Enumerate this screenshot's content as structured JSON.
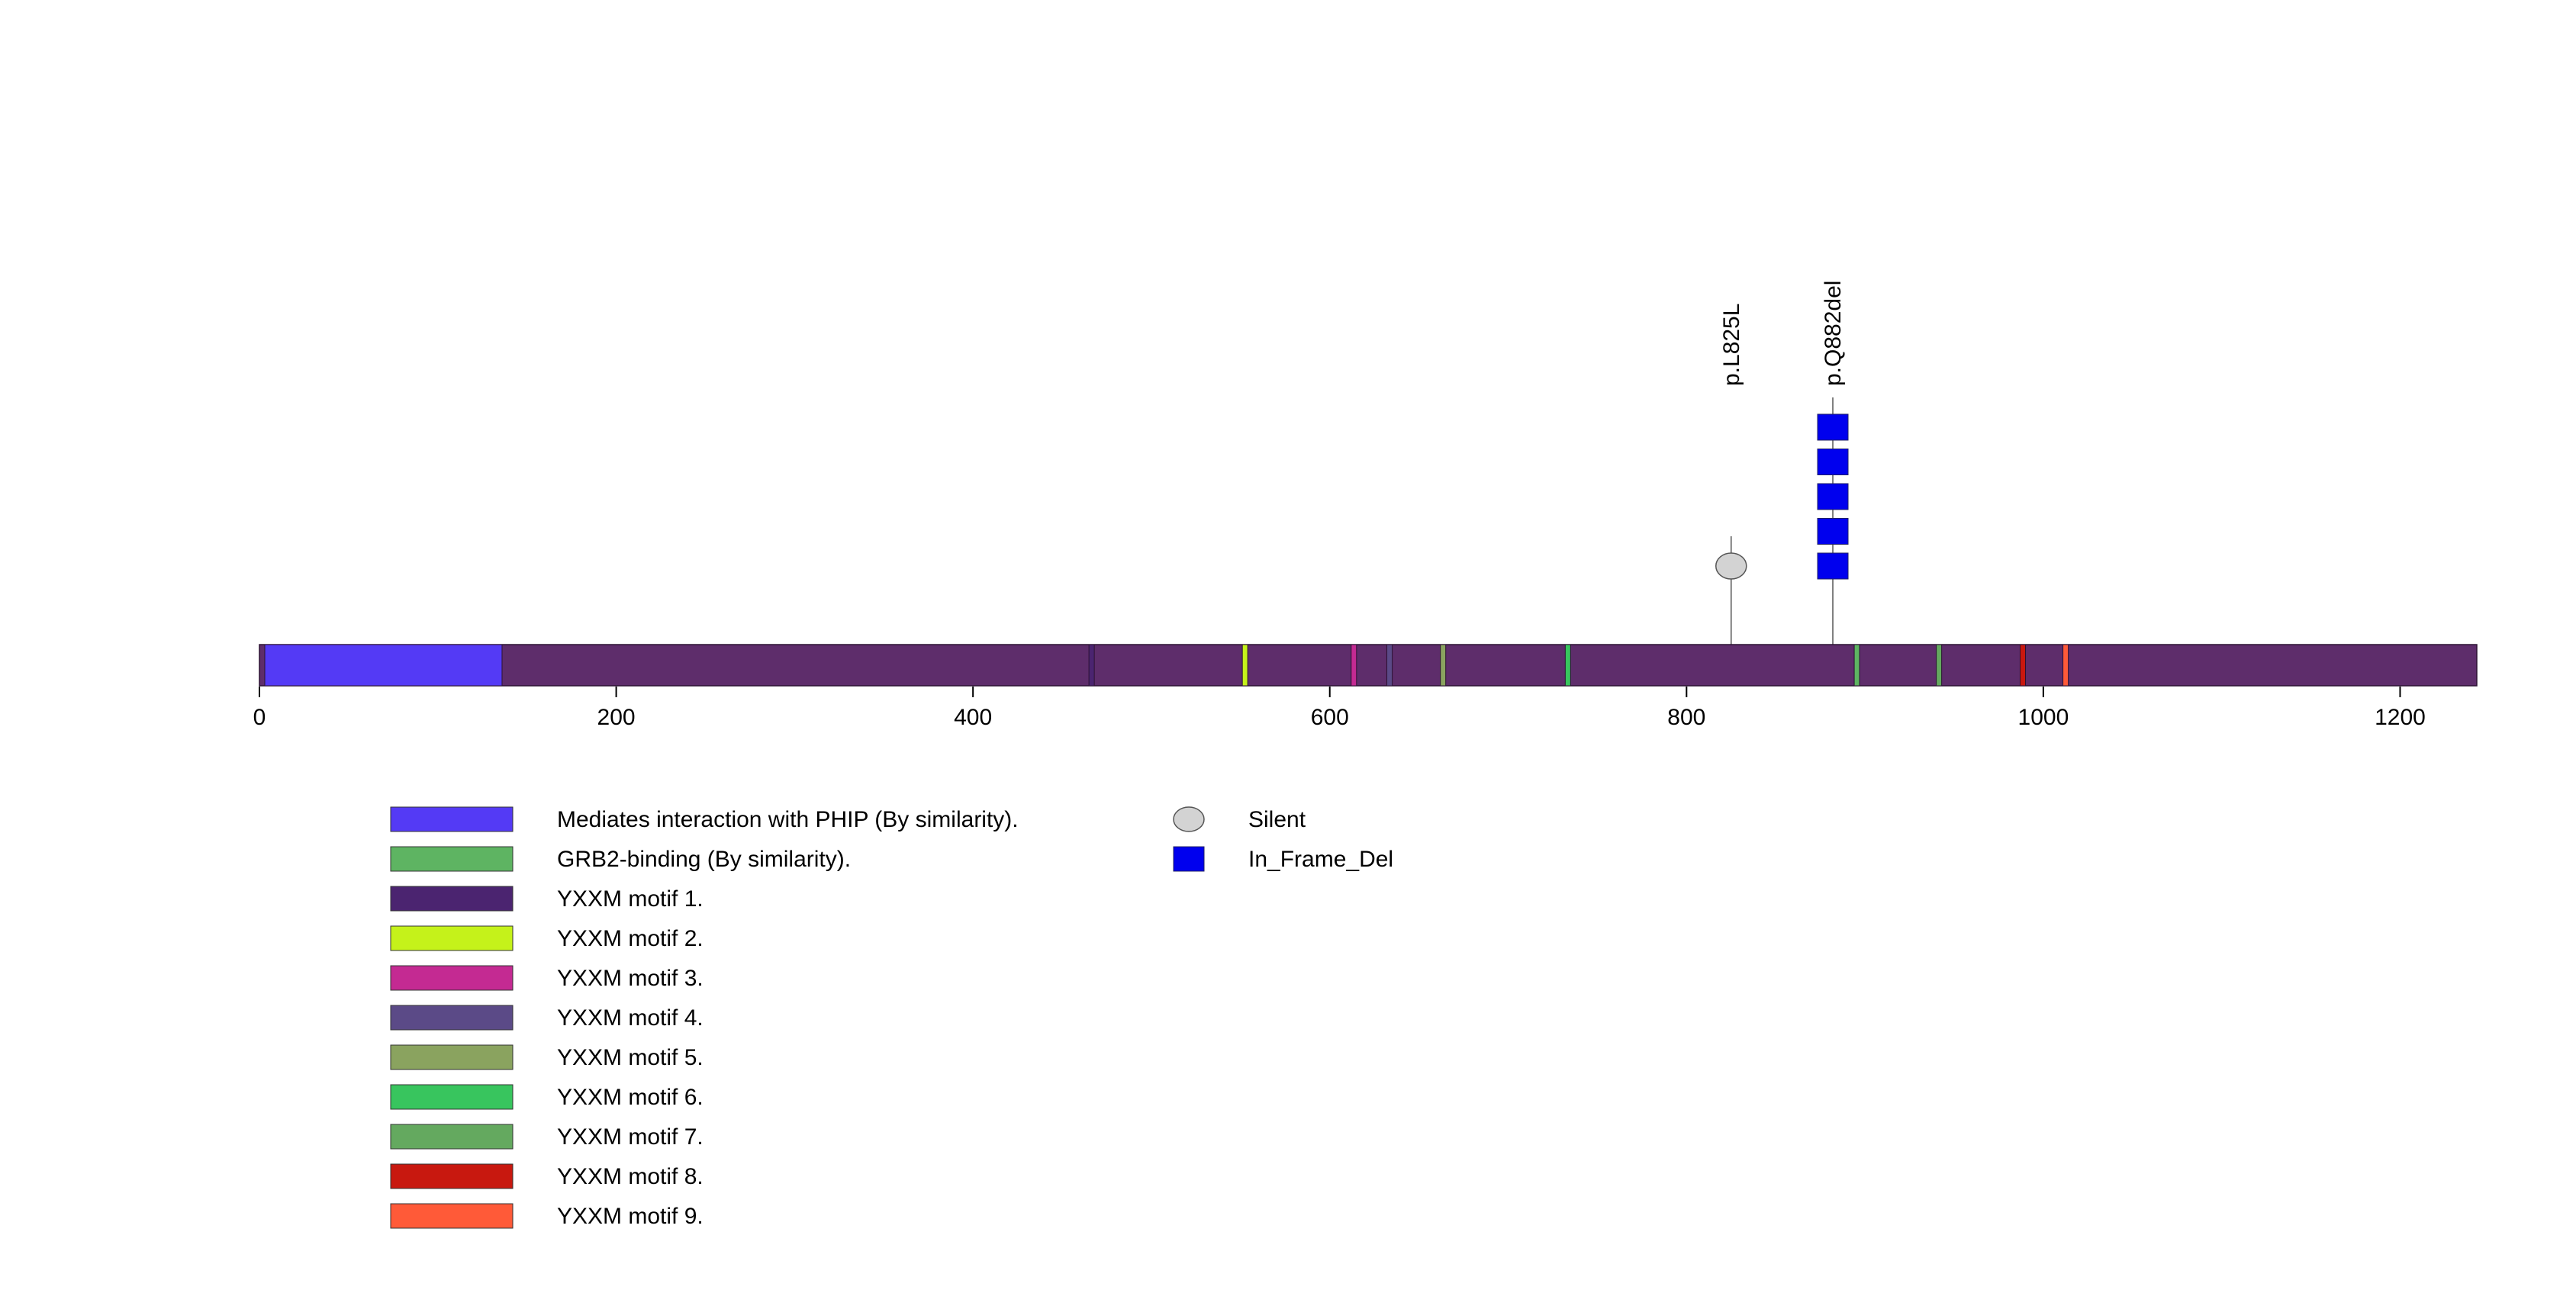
{
  "chart_data": {
    "type": "lollipop",
    "protein_length": 1243,
    "xlim": [
      0,
      1243
    ],
    "x_ticks": [
      0,
      200,
      400,
      600,
      800,
      1000,
      1200
    ],
    "backbone_color": "#5e2d6b",
    "domains": [
      {
        "name": "Mediates interaction with PHIP (By similarity).",
        "start": 3,
        "end": 136,
        "color": "#543af5"
      },
      {
        "name": "GRB2-binding (By similarity).",
        "start": 894,
        "end": 897,
        "color": "#5eb462"
      },
      {
        "name": "YXXM motif 1.",
        "start": 465,
        "end": 468,
        "color": "#4b2470"
      },
      {
        "name": "YXXM motif 2.",
        "start": 551,
        "end": 554,
        "color": "#c5f21a"
      },
      {
        "name": "YXXM motif 3.",
        "start": 612,
        "end": 615,
        "color": "#c42a92"
      },
      {
        "name": "YXXM motif 4.",
        "start": 632,
        "end": 635,
        "color": "#5b4a87"
      },
      {
        "name": "YXXM motif 5.",
        "start": 662,
        "end": 665,
        "color": "#8aa35f"
      },
      {
        "name": "YXXM motif 6.",
        "start": 732,
        "end": 735,
        "color": "#38c55e"
      },
      {
        "name": "YXXM motif 7.",
        "start": 940,
        "end": 943,
        "color": "#64a95f"
      },
      {
        "name": "YXXM motif 8.",
        "start": 987,
        "end": 990,
        "color": "#c8180f"
      },
      {
        "name": "YXXM motif 9.",
        "start": 1011,
        "end": 1014,
        "color": "#ff5a38"
      }
    ],
    "mutations": [
      {
        "label": "p.L825L",
        "position": 825,
        "count": 1,
        "type": "Silent"
      },
      {
        "label": "p.Q882del",
        "position": 882,
        "count": 5,
        "type": "In_Frame_Del"
      }
    ],
    "mutation_types": [
      {
        "name": "Silent",
        "color": "#d3d3d3",
        "shape": "ellipse"
      },
      {
        "name": "In_Frame_Del",
        "color": "#0000ee",
        "shape": "rect"
      }
    ]
  }
}
